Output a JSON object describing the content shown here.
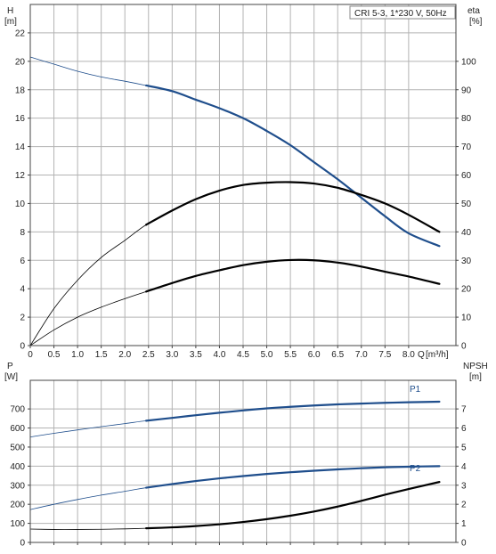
{
  "chart_data": [
    {
      "type": "line",
      "title": "CRI 5-3, 1*230 V, 50Hz",
      "left_axis": {
        "name": "H",
        "unit": "[m]",
        "ylim": [
          0,
          24
        ],
        "ticks": [
          0,
          2,
          4,
          6,
          8,
          10,
          12,
          14,
          16,
          18,
          20,
          22
        ]
      },
      "right_axis": {
        "name": "eta",
        "unit": "[%]",
        "ylim": [
          0,
          120
        ],
        "ticks": [
          0,
          10,
          20,
          30,
          40,
          50,
          60,
          70,
          80,
          90,
          100
        ]
      },
      "x_axis": {
        "name": "Q",
        "unit": "[m³/h]",
        "xlim": [
          0,
          9.0
        ],
        "ticks": [
          "0",
          "0.5",
          "1.0",
          "1.5",
          "2.0",
          "2.5",
          "3.0",
          "3.5",
          "4.0",
          "4.5",
          "5.0",
          "5.5",
          "6.0",
          "6.5",
          "7.0",
          "7.5",
          "8.0"
        ]
      },
      "grid": true,
      "duty_range": [
        2.45,
        8.65
      ],
      "series": [
        {
          "axis": "left",
          "color": "#1f4e8c",
          "x": [
            0,
            0.5,
            1.0,
            1.5,
            2.0,
            2.45,
            3.0,
            3.5,
            4.0,
            4.5,
            5.0,
            5.5,
            6.0,
            6.5,
            7.0,
            7.5,
            8.0,
            8.65
          ],
          "values": [
            20.3,
            19.8,
            19.3,
            18.9,
            18.6,
            18.3,
            17.9,
            17.3,
            16.7,
            16.0,
            15.1,
            14.1,
            12.9,
            11.7,
            10.4,
            9.1,
            7.9,
            7.0
          ]
        },
        {
          "axis": "right",
          "color": "#000000",
          "x": [
            0,
            0.5,
            1.0,
            1.5,
            2.0,
            2.45,
            3.0,
            3.5,
            4.0,
            4.5,
            5.0,
            5.5,
            6.0,
            6.5,
            7.0,
            7.5,
            8.0,
            8.65
          ],
          "values": [
            0,
            13,
            23,
            31,
            37,
            42.5,
            47.5,
            51.5,
            54.5,
            56.5,
            57.3,
            57.5,
            57.0,
            55.5,
            53.0,
            50.0,
            46.0,
            40.0
          ]
        },
        {
          "axis": "right",
          "color": "#000000",
          "x": [
            0,
            0.5,
            1.0,
            1.5,
            2.0,
            2.45,
            3.0,
            3.5,
            4.0,
            4.5,
            5.0,
            5.5,
            6.0,
            6.5,
            7.0,
            7.5,
            8.0,
            8.65
          ],
          "values": [
            0,
            5.5,
            10,
            13.5,
            16.5,
            19.0,
            22.0,
            24.5,
            26.5,
            28.3,
            29.5,
            30.1,
            30.0,
            29.2,
            27.8,
            26.0,
            24.3,
            21.7
          ]
        }
      ]
    },
    {
      "type": "line",
      "left_axis": {
        "name": "P",
        "unit": "[W]",
        "ylim": [
          0,
          850
        ],
        "ticks": [
          0,
          100,
          200,
          300,
          400,
          500,
          600,
          700
        ]
      },
      "right_axis": {
        "name": "NPSH",
        "unit": "[m]",
        "ylim": [
          0,
          8.5
        ],
        "ticks": [
          0,
          1,
          2,
          3,
          4,
          5,
          6,
          7
        ]
      },
      "x_axis": {
        "xlim": [
          0,
          9.0
        ]
      },
      "grid": true,
      "duty_range": [
        2.45,
        8.65
      ],
      "series": [
        {
          "name": "P1",
          "axis": "left",
          "color": "#1f4e8c",
          "x": [
            0,
            0.5,
            1.0,
            1.5,
            2.0,
            2.45,
            3.0,
            3.5,
            4.0,
            4.5,
            5.0,
            5.5,
            6.0,
            6.5,
            7.0,
            7.5,
            8.0,
            8.65
          ],
          "values": [
            553,
            572,
            590,
            607,
            623,
            638,
            653,
            667,
            680,
            692,
            703,
            711,
            718,
            724,
            728,
            732,
            735,
            738
          ]
        },
        {
          "name": "P2",
          "axis": "left",
          "color": "#1f4e8c",
          "x": [
            0,
            0.5,
            1.0,
            1.5,
            2.0,
            2.45,
            3.0,
            3.5,
            4.0,
            4.5,
            5.0,
            5.5,
            6.0,
            6.5,
            7.0,
            7.5,
            8.0,
            8.65
          ],
          "values": [
            172,
            200,
            225,
            248,
            268,
            287,
            306,
            322,
            336,
            348,
            359,
            368,
            376,
            383,
            389,
            394,
            397,
            400
          ]
        },
        {
          "axis": "right",
          "color": "#000000",
          "x": [
            0,
            0.5,
            1.0,
            1.5,
            2.0,
            2.45,
            3.0,
            3.5,
            4.0,
            4.5,
            5.0,
            5.5,
            6.0,
            6.5,
            7.0,
            7.5,
            8.0,
            8.65
          ],
          "values": [
            0.7,
            0.68,
            0.68,
            0.69,
            0.71,
            0.74,
            0.79,
            0.86,
            0.95,
            1.07,
            1.22,
            1.4,
            1.62,
            1.88,
            2.18,
            2.5,
            2.8,
            3.17
          ]
        }
      ]
    }
  ]
}
